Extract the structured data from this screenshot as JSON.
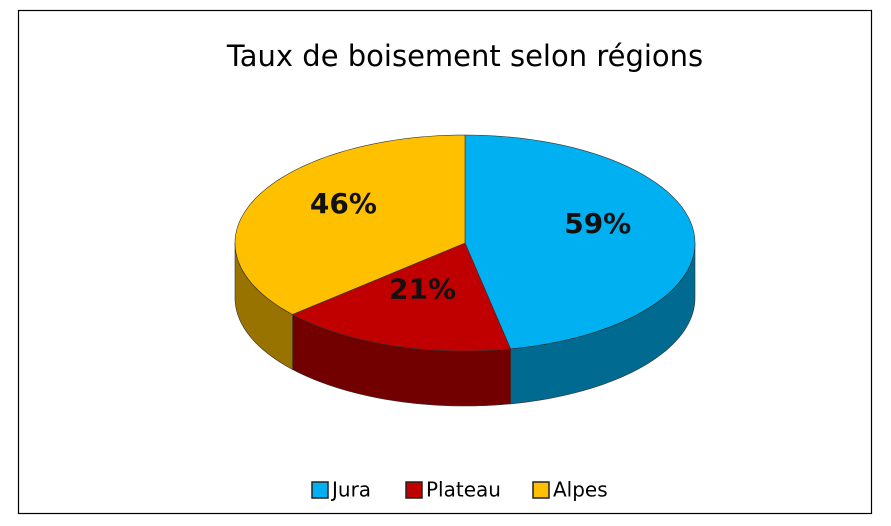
{
  "chart_data": {
    "type": "pie3d",
    "title": "Taux de boisement selon régions",
    "categories": [
      "Jura",
      "Plateau",
      "Alpes"
    ],
    "values": [
      59,
      21,
      46
    ],
    "value_labels": [
      "59%",
      "21%",
      "46%"
    ],
    "colors": [
      "#00b0f0",
      "#c00000",
      "#ffc000"
    ],
    "legend": "bottom"
  }
}
